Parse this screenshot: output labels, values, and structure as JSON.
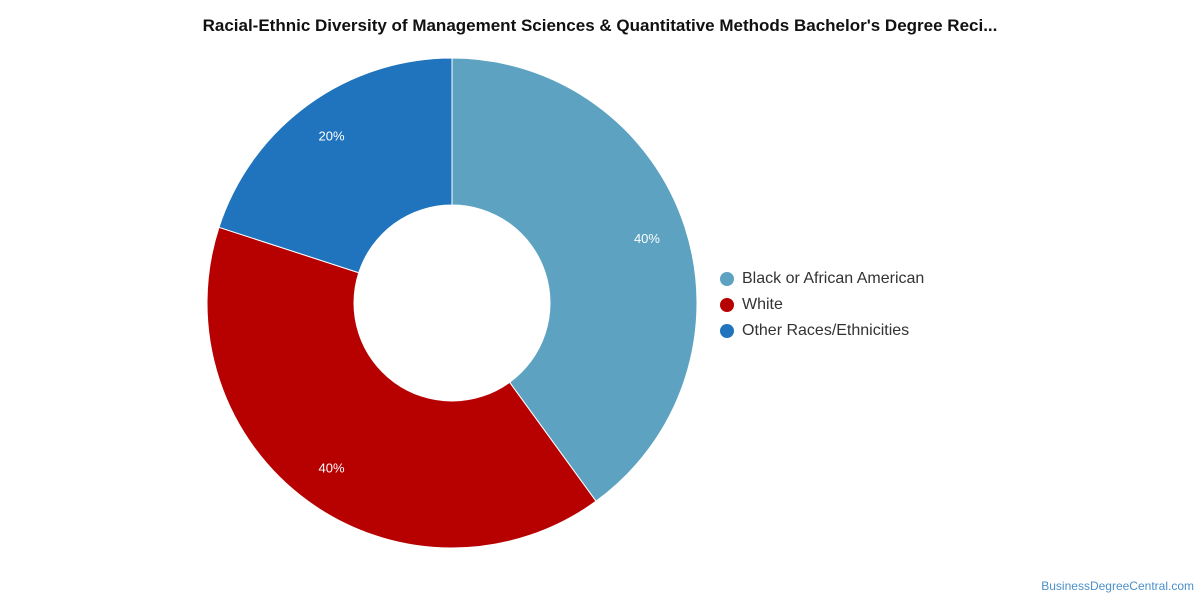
{
  "chart_data": {
    "type": "pie",
    "title": "Racial-Ethnic Diversity of Management Sciences & Quantitative Methods Bachelor's Degree Reci...",
    "donut": true,
    "legend_position": "right",
    "slices": [
      {
        "label": "Black or African American",
        "value": 40,
        "display": "40%",
        "color": "#5da2c0"
      },
      {
        "label": "White",
        "value": 40,
        "display": "40%",
        "color": "#b70000"
      },
      {
        "label": "Other Races/Ethnicities",
        "value": 20,
        "display": "20%",
        "color": "#1f74bd"
      }
    ]
  },
  "footer": {
    "source": "BusinessDegreeCentral.com"
  }
}
